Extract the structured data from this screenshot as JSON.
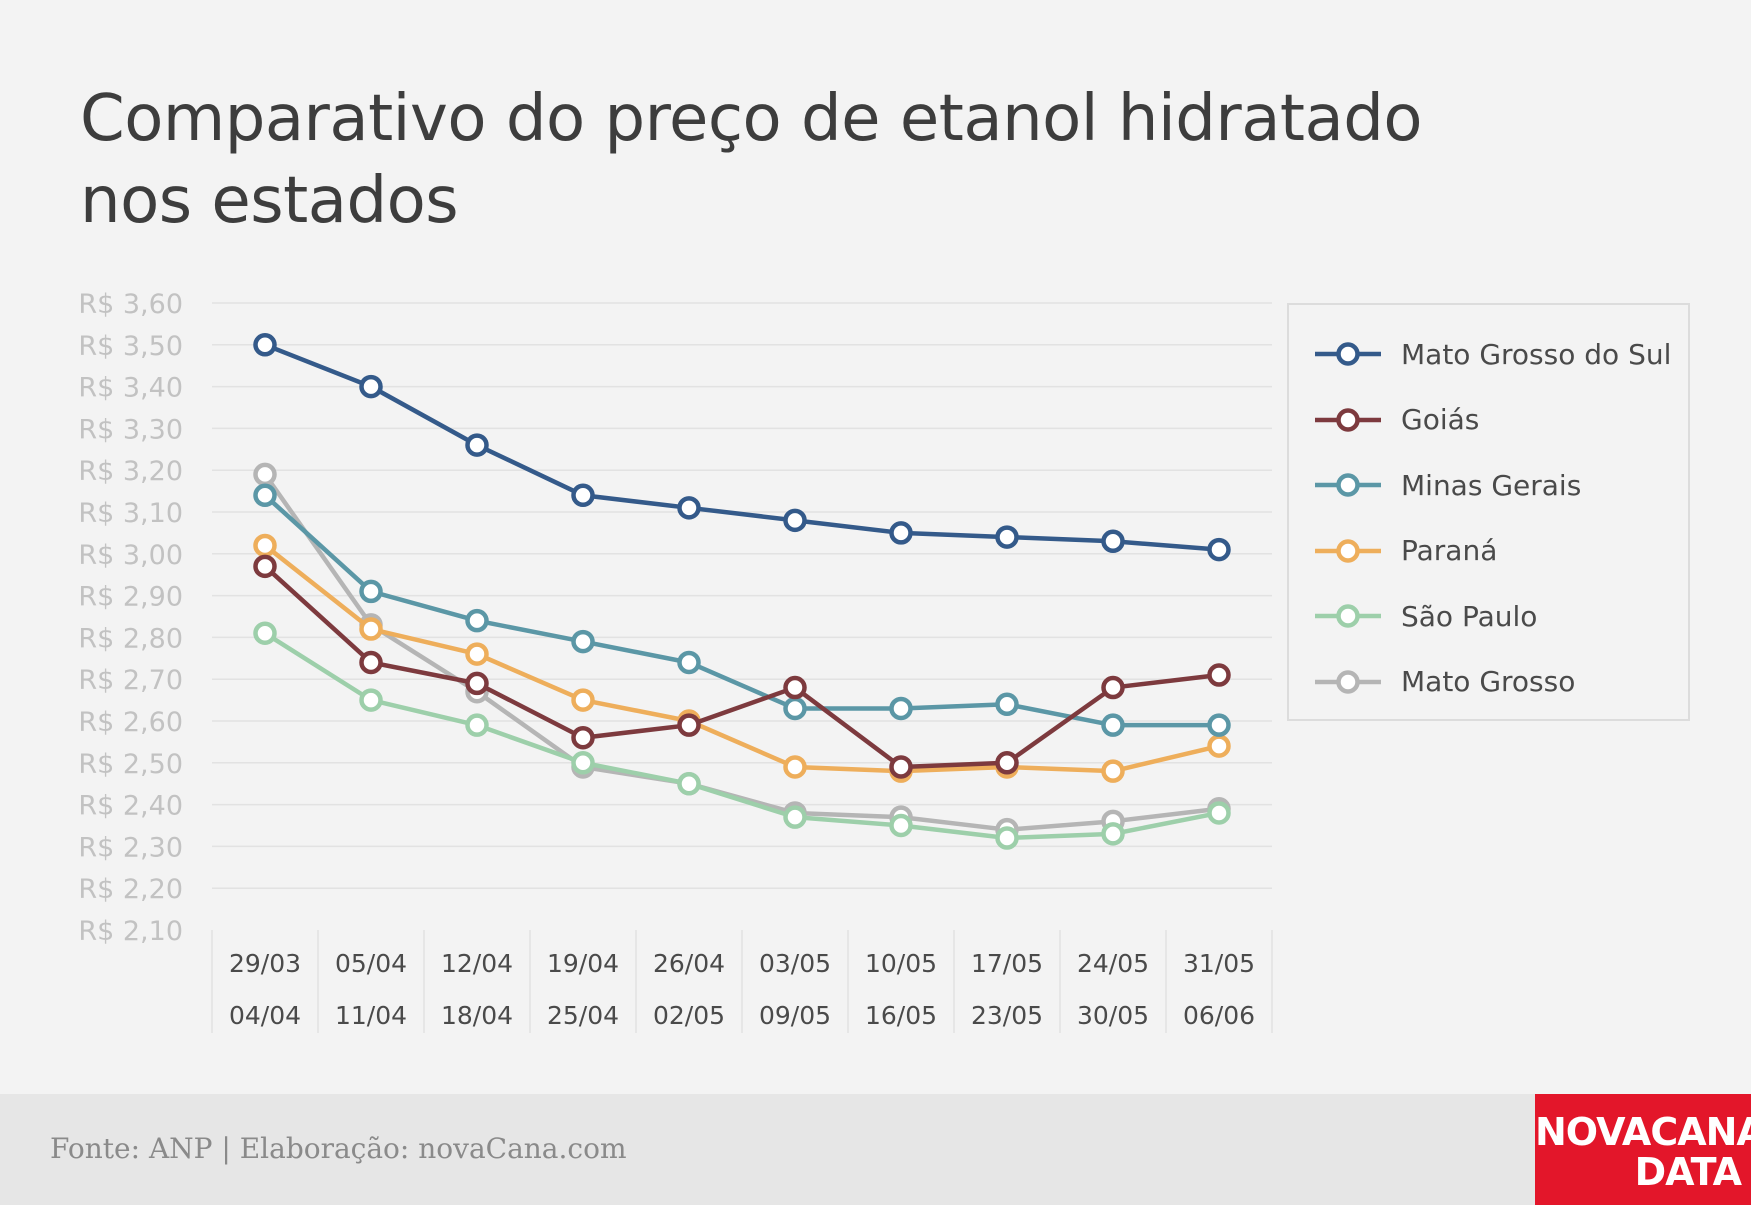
{
  "title_lines": [
    "Comparativo do preço de etanol hidratado",
    "nos estados"
  ],
  "source": "Fonte: ANP | Elaboração: novaCana.com",
  "logo": {
    "line1": "NOVACANA",
    "line2": "DATA"
  },
  "chart_data": {
    "type": "line",
    "title": "Comparativo do preço de etanol hidratado nos estados",
    "categories": [
      [
        "29/03",
        "04/04"
      ],
      [
        "05/04",
        "11/04"
      ],
      [
        "12/04",
        "18/04"
      ],
      [
        "19/04",
        "25/04"
      ],
      [
        "26/04",
        "02/05"
      ],
      [
        "03/05",
        "09/05"
      ],
      [
        "10/05",
        "16/05"
      ],
      [
        "17/05",
        "23/05"
      ],
      [
        "24/05",
        "30/05"
      ],
      [
        "31/05",
        "06/06"
      ]
    ],
    "y_ticks": [
      "R$ 3,60",
      "R$ 3,50",
      "R$ 3,40",
      "R$ 3,30",
      "R$ 3,20",
      "R$ 3,10",
      "R$ 3,00",
      "R$ 2,90",
      "R$ 2,80",
      "R$ 2,70",
      "R$ 2,60",
      "R$ 2,50",
      "R$ 2,40",
      "R$ 2,30",
      "R$ 2,20",
      "R$ 2,10"
    ],
    "ylim": [
      2.1,
      3.6
    ],
    "grid": true,
    "legend_position": "right",
    "series": [
      {
        "name": "Mato Grosso do Sul",
        "color": "#345a8a",
        "values": [
          3.5,
          3.4,
          3.26,
          3.14,
          3.11,
          3.08,
          3.05,
          3.04,
          3.03,
          3.01
        ]
      },
      {
        "name": "Goiás",
        "color": "#7d3a3e",
        "values": [
          2.97,
          2.74,
          2.69,
          2.56,
          2.59,
          2.68,
          2.49,
          2.5,
          2.68,
          2.71
        ]
      },
      {
        "name": "Minas Gerais",
        "color": "#5b97a6",
        "values": [
          3.14,
          2.91,
          2.84,
          2.79,
          2.74,
          2.63,
          2.63,
          2.64,
          2.59,
          2.59
        ]
      },
      {
        "name": "Paraná",
        "color": "#eeae5b",
        "values": [
          3.02,
          2.82,
          2.76,
          2.65,
          2.6,
          2.49,
          2.48,
          2.49,
          2.48,
          2.54
        ]
      },
      {
        "name": "São Paulo",
        "color": "#9dcfaa",
        "values": [
          2.81,
          2.65,
          2.59,
          2.5,
          2.45,
          2.37,
          2.35,
          2.32,
          2.33,
          2.38
        ]
      },
      {
        "name": "Mato Grosso",
        "color": "#b5b5b5",
        "values": [
          3.19,
          2.83,
          2.67,
          2.49,
          2.45,
          2.38,
          2.37,
          2.34,
          2.36,
          2.39
        ]
      }
    ]
  }
}
